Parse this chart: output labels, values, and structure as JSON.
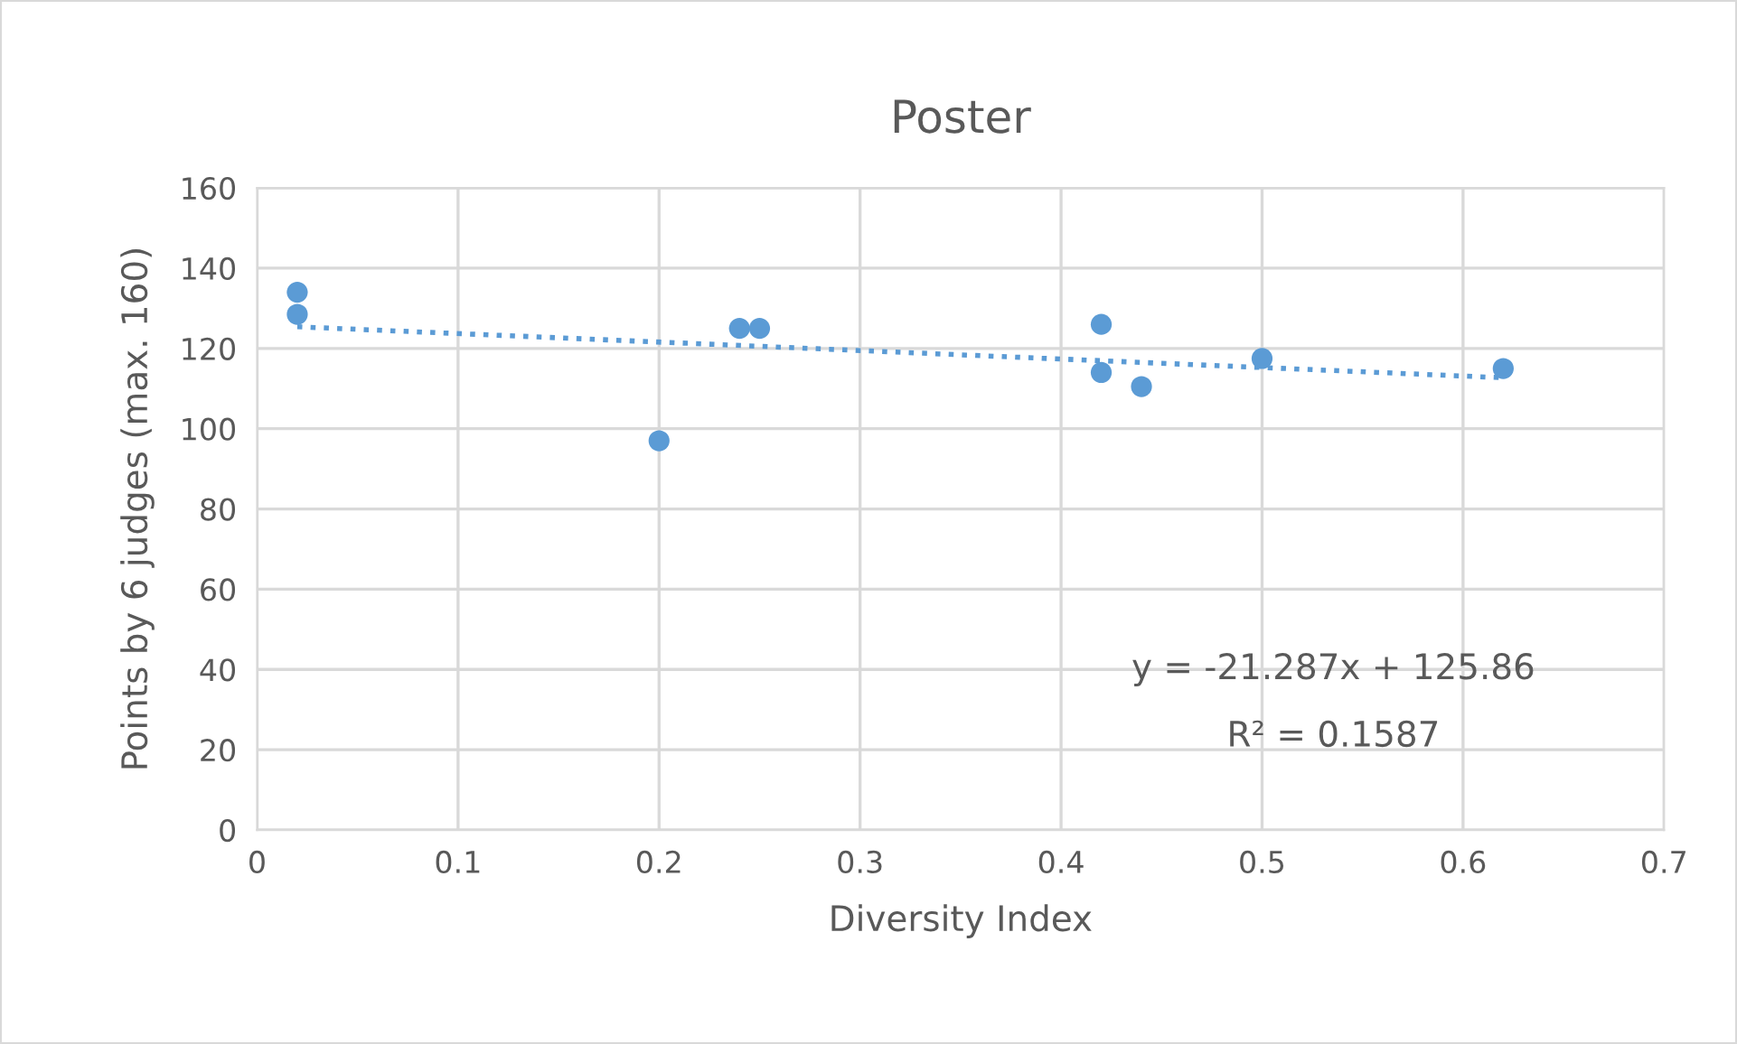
{
  "chart_data": {
    "type": "scatter",
    "title": "Poster",
    "xlabel": "Diversity Index",
    "ylabel": "Points by 6 judges (max. 160)",
    "xlim": [
      0,
      0.7
    ],
    "xticks": [
      0,
      0.1,
      0.2,
      0.3,
      0.4,
      0.5,
      0.6,
      0.7
    ],
    "ylim": [
      0,
      160
    ],
    "yticks": [
      0,
      20,
      40,
      60,
      80,
      100,
      120,
      140,
      160
    ],
    "grid": true,
    "legend": false,
    "series": [
      {
        "marker": "circle",
        "color": "#5b9bd5",
        "x": [
          0.02,
          0.02,
          0.2,
          0.24,
          0.25,
          0.42,
          0.42,
          0.44,
          0.5,
          0.62
        ],
        "values": [
          134,
          128.5,
          97,
          125,
          125,
          126,
          114,
          110.5,
          117.5,
          115
        ]
      },
      {
        "type": "line",
        "color": "#5b9bd5",
        "line_style": "dotted",
        "marker": "none",
        "x": [
          0.02,
          0.62
        ],
        "values": [
          125.4,
          112.7
        ]
      }
    ],
    "annotations": [
      "y = -21.287x + 125.86",
      "R² = 0.1587"
    ]
  }
}
